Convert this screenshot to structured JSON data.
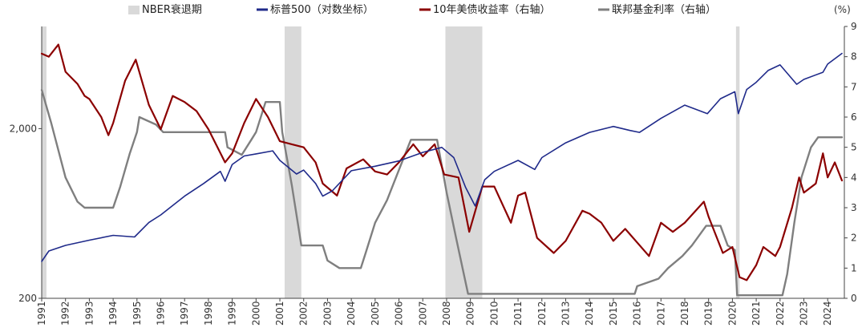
{
  "chart_data": {
    "type": "line",
    "y_unit_label": "(%)",
    "x_ticks": [
      "1991",
      "1992",
      "1993",
      "1994",
      "1995",
      "1996",
      "1997",
      "1998",
      "1999",
      "2000",
      "2001",
      "2002",
      "2003",
      "2004",
      "2005",
      "2006",
      "2007",
      "2008",
      "2009",
      "2010",
      "2011",
      "2012",
      "2013",
      "2014",
      "2015",
      "2016",
      "2017",
      "2018",
      "2019",
      "2020",
      "2021",
      "2022",
      "2023",
      "2024"
    ],
    "x_range": [
      1991.0,
      2024.7
    ],
    "y_left": {
      "scale": "log",
      "range": [
        200,
        8000
      ],
      "ticks": [
        "200",
        "2,000"
      ],
      "tick_values": [
        200,
        2000
      ]
    },
    "y_right": {
      "scale": "linear",
      "range": [
        0,
        9
      ],
      "ticks": [
        "0",
        "1",
        "2",
        "3",
        "4",
        "5",
        "6",
        "7",
        "8",
        "9"
      ]
    },
    "legend": [
      {
        "label": "NBER衰退期",
        "color": "#d9d9d9",
        "kind": "box"
      },
      {
        "label": "标普500（对数坐标）",
        "color": "#1f2a8a",
        "kind": "line"
      },
      {
        "label": "10年美债收益率（右轴）",
        "color": "#8b0000",
        "kind": "line"
      },
      {
        "label": "联邦基金利率（右轴）",
        "color": "#7f7f7f",
        "kind": "line"
      }
    ],
    "recessions": [
      [
        1991.0,
        1991.2
      ],
      [
        2001.2,
        2001.9
      ],
      [
        2007.95,
        2009.5
      ],
      [
        2020.15,
        2020.3
      ]
    ],
    "series": [
      {
        "name": "标普500（对数坐标）",
        "axis": "left",
        "color": "#1f2a8a",
        "points": [
          [
            1991.0,
            330
          ],
          [
            1991.3,
            380
          ],
          [
            1992.0,
            410
          ],
          [
            1993.0,
            440
          ],
          [
            1994.0,
            470
          ],
          [
            1994.9,
            460
          ],
          [
            1995.5,
            560
          ],
          [
            1996.0,
            620
          ],
          [
            1997.0,
            800
          ],
          [
            1997.8,
            950
          ],
          [
            1998.5,
            1120
          ],
          [
            1998.7,
            980
          ],
          [
            1999.0,
            1230
          ],
          [
            1999.5,
            1380
          ],
          [
            2000.0,
            1420
          ],
          [
            2000.7,
            1480
          ],
          [
            2001.0,
            1300
          ],
          [
            2001.7,
            1080
          ],
          [
            2002.0,
            1140
          ],
          [
            2002.5,
            950
          ],
          [
            2002.8,
            800
          ],
          [
            2003.2,
            860
          ],
          [
            2004.0,
            1130
          ],
          [
            2005.0,
            1200
          ],
          [
            2006.0,
            1290
          ],
          [
            2007.0,
            1450
          ],
          [
            2007.8,
            1550
          ],
          [
            2008.3,
            1350
          ],
          [
            2008.8,
            900
          ],
          [
            2009.2,
            700
          ],
          [
            2009.6,
            1000
          ],
          [
            2010.0,
            1120
          ],
          [
            2011.0,
            1300
          ],
          [
            2011.7,
            1150
          ],
          [
            2012.0,
            1350
          ],
          [
            2013.0,
            1650
          ],
          [
            2014.0,
            1900
          ],
          [
            2015.0,
            2060
          ],
          [
            2015.7,
            1950
          ],
          [
            2016.1,
            1900
          ],
          [
            2017.0,
            2300
          ],
          [
            2018.0,
            2750
          ],
          [
            2018.95,
            2450
          ],
          [
            2019.5,
            3000
          ],
          [
            2020.1,
            3300
          ],
          [
            2020.25,
            2450
          ],
          [
            2020.6,
            3400
          ],
          [
            2021.0,
            3750
          ],
          [
            2021.5,
            4400
          ],
          [
            2022.0,
            4750
          ],
          [
            2022.7,
            3650
          ],
          [
            2023.0,
            3900
          ],
          [
            2023.8,
            4300
          ],
          [
            2024.0,
            4800
          ],
          [
            2024.6,
            5550
          ]
        ]
      },
      {
        "name": "10年美债收益率（右轴）",
        "axis": "right",
        "color": "#8b0000",
        "points": [
          [
            1991.0,
            8.1
          ],
          [
            1991.3,
            8.0
          ],
          [
            1991.7,
            8.4
          ],
          [
            1992.0,
            7.5
          ],
          [
            1992.5,
            7.1
          ],
          [
            1992.8,
            6.7
          ],
          [
            1993.0,
            6.6
          ],
          [
            1993.5,
            6.0
          ],
          [
            1993.8,
            5.4
          ],
          [
            1994.0,
            5.8
          ],
          [
            1994.5,
            7.2
          ],
          [
            1994.95,
            7.9
          ],
          [
            1995.5,
            6.4
          ],
          [
            1996.0,
            5.6
          ],
          [
            1996.5,
            6.7
          ],
          [
            1997.0,
            6.5
          ],
          [
            1997.5,
            6.2
          ],
          [
            1998.0,
            5.6
          ],
          [
            1998.7,
            4.5
          ],
          [
            1999.0,
            4.8
          ],
          [
            1999.5,
            5.8
          ],
          [
            2000.0,
            6.6
          ],
          [
            2000.5,
            6.0
          ],
          [
            2001.0,
            5.2
          ],
          [
            2001.5,
            5.1
          ],
          [
            2002.0,
            5.0
          ],
          [
            2002.5,
            4.5
          ],
          [
            2002.8,
            3.8
          ],
          [
            2003.4,
            3.4
          ],
          [
            2003.8,
            4.3
          ],
          [
            2004.5,
            4.6
          ],
          [
            2005.0,
            4.2
          ],
          [
            2005.5,
            4.1
          ],
          [
            2006.0,
            4.5
          ],
          [
            2006.6,
            5.1
          ],
          [
            2007.0,
            4.7
          ],
          [
            2007.5,
            5.1
          ],
          [
            2007.9,
            4.1
          ],
          [
            2008.5,
            4.0
          ],
          [
            2008.95,
            2.2
          ],
          [
            2009.5,
            3.7
          ],
          [
            2010.0,
            3.7
          ],
          [
            2010.7,
            2.5
          ],
          [
            2011.0,
            3.4
          ],
          [
            2011.3,
            3.5
          ],
          [
            2011.8,
            2.0
          ],
          [
            2012.5,
            1.5
          ],
          [
            2013.0,
            1.9
          ],
          [
            2013.7,
            2.9
          ],
          [
            2014.0,
            2.8
          ],
          [
            2014.5,
            2.5
          ],
          [
            2015.0,
            1.9
          ],
          [
            2015.5,
            2.3
          ],
          [
            2016.5,
            1.4
          ],
          [
            2017.0,
            2.5
          ],
          [
            2017.5,
            2.2
          ],
          [
            2018.0,
            2.5
          ],
          [
            2018.8,
            3.2
          ],
          [
            2019.0,
            2.7
          ],
          [
            2019.6,
            1.5
          ],
          [
            2020.0,
            1.7
          ],
          [
            2020.3,
            0.7
          ],
          [
            2020.6,
            0.6
          ],
          [
            2021.0,
            1.1
          ],
          [
            2021.3,
            1.7
          ],
          [
            2021.8,
            1.4
          ],
          [
            2022.0,
            1.7
          ],
          [
            2022.5,
            3.0
          ],
          [
            2022.8,
            4.0
          ],
          [
            2023.0,
            3.5
          ],
          [
            2023.5,
            3.8
          ],
          [
            2023.8,
            4.8
          ],
          [
            2024.0,
            4.0
          ],
          [
            2024.3,
            4.5
          ],
          [
            2024.6,
            3.9
          ]
        ]
      },
      {
        "name": "联邦基金利率（右轴）",
        "axis": "right",
        "color": "#7f7f7f",
        "points": [
          [
            1991.0,
            6.9
          ],
          [
            1991.4,
            5.8
          ],
          [
            1992.0,
            4.0
          ],
          [
            1992.5,
            3.2
          ],
          [
            1992.8,
            3.0
          ],
          [
            1994.0,
            3.0
          ],
          [
            1994.3,
            3.7
          ],
          [
            1994.7,
            4.8
          ],
          [
            1995.0,
            5.5
          ],
          [
            1995.1,
            6.0
          ],
          [
            1995.8,
            5.75
          ],
          [
            1996.1,
            5.5
          ],
          [
            1997.0,
            5.5
          ],
          [
            1997.3,
            5.5
          ],
          [
            1998.7,
            5.5
          ],
          [
            1998.8,
            5.0
          ],
          [
            1999.4,
            4.75
          ],
          [
            1999.8,
            5.25
          ],
          [
            2000.0,
            5.5
          ],
          [
            2000.4,
            6.5
          ],
          [
            2001.0,
            6.5
          ],
          [
            2001.1,
            5.5
          ],
          [
            2001.5,
            3.75
          ],
          [
            2001.9,
            1.75
          ],
          [
            2002.8,
            1.75
          ],
          [
            2003.0,
            1.25
          ],
          [
            2003.5,
            1.0
          ],
          [
            2004.4,
            1.0
          ],
          [
            2004.6,
            1.5
          ],
          [
            2005.0,
            2.5
          ],
          [
            2005.5,
            3.25
          ],
          [
            2006.0,
            4.25
          ],
          [
            2006.5,
            5.25
          ],
          [
            2007.6,
            5.25
          ],
          [
            2008.0,
            3.5
          ],
          [
            2008.4,
            2.0
          ],
          [
            2008.9,
            0.15
          ],
          [
            2015.9,
            0.15
          ],
          [
            2016.0,
            0.4
          ],
          [
            2016.9,
            0.65
          ],
          [
            2017.3,
            1.0
          ],
          [
            2017.9,
            1.4
          ],
          [
            2018.3,
            1.75
          ],
          [
            2018.9,
            2.4
          ],
          [
            2019.5,
            2.4
          ],
          [
            2019.8,
            1.75
          ],
          [
            2020.1,
            1.6
          ],
          [
            2020.2,
            0.1
          ],
          [
            2022.1,
            0.1
          ],
          [
            2022.3,
            0.8
          ],
          [
            2022.6,
            2.5
          ],
          [
            2022.9,
            4.0
          ],
          [
            2023.3,
            5.0
          ],
          [
            2023.6,
            5.33
          ],
          [
            2024.6,
            5.33
          ]
        ]
      }
    ]
  }
}
